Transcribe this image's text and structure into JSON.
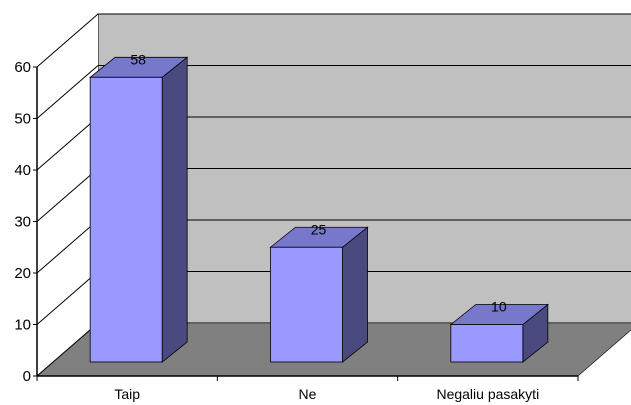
{
  "chart_data": {
    "type": "bar",
    "title": "",
    "xlabel": "",
    "ylabel": "",
    "categories": [
      "Taip",
      "Ne",
      "Negaliu pasakyti"
    ],
    "values": [
      58,
      25,
      10
    ],
    "data_labels": [
      "58",
      "25",
      "10"
    ],
    "ylim": [
      0,
      60
    ],
    "yticks": [
      "0",
      "10",
      "20",
      "30",
      "40",
      "50",
      "60"
    ],
    "grid": true,
    "legend": "none",
    "style": "3d-column"
  },
  "colors": {
    "bar_front": "#9999ff",
    "bar_side": "#4a4a80",
    "bar_top": "#7777cc",
    "back_wall": "#c0c0c0",
    "floor": "#808080",
    "gridline": "#000000"
  }
}
